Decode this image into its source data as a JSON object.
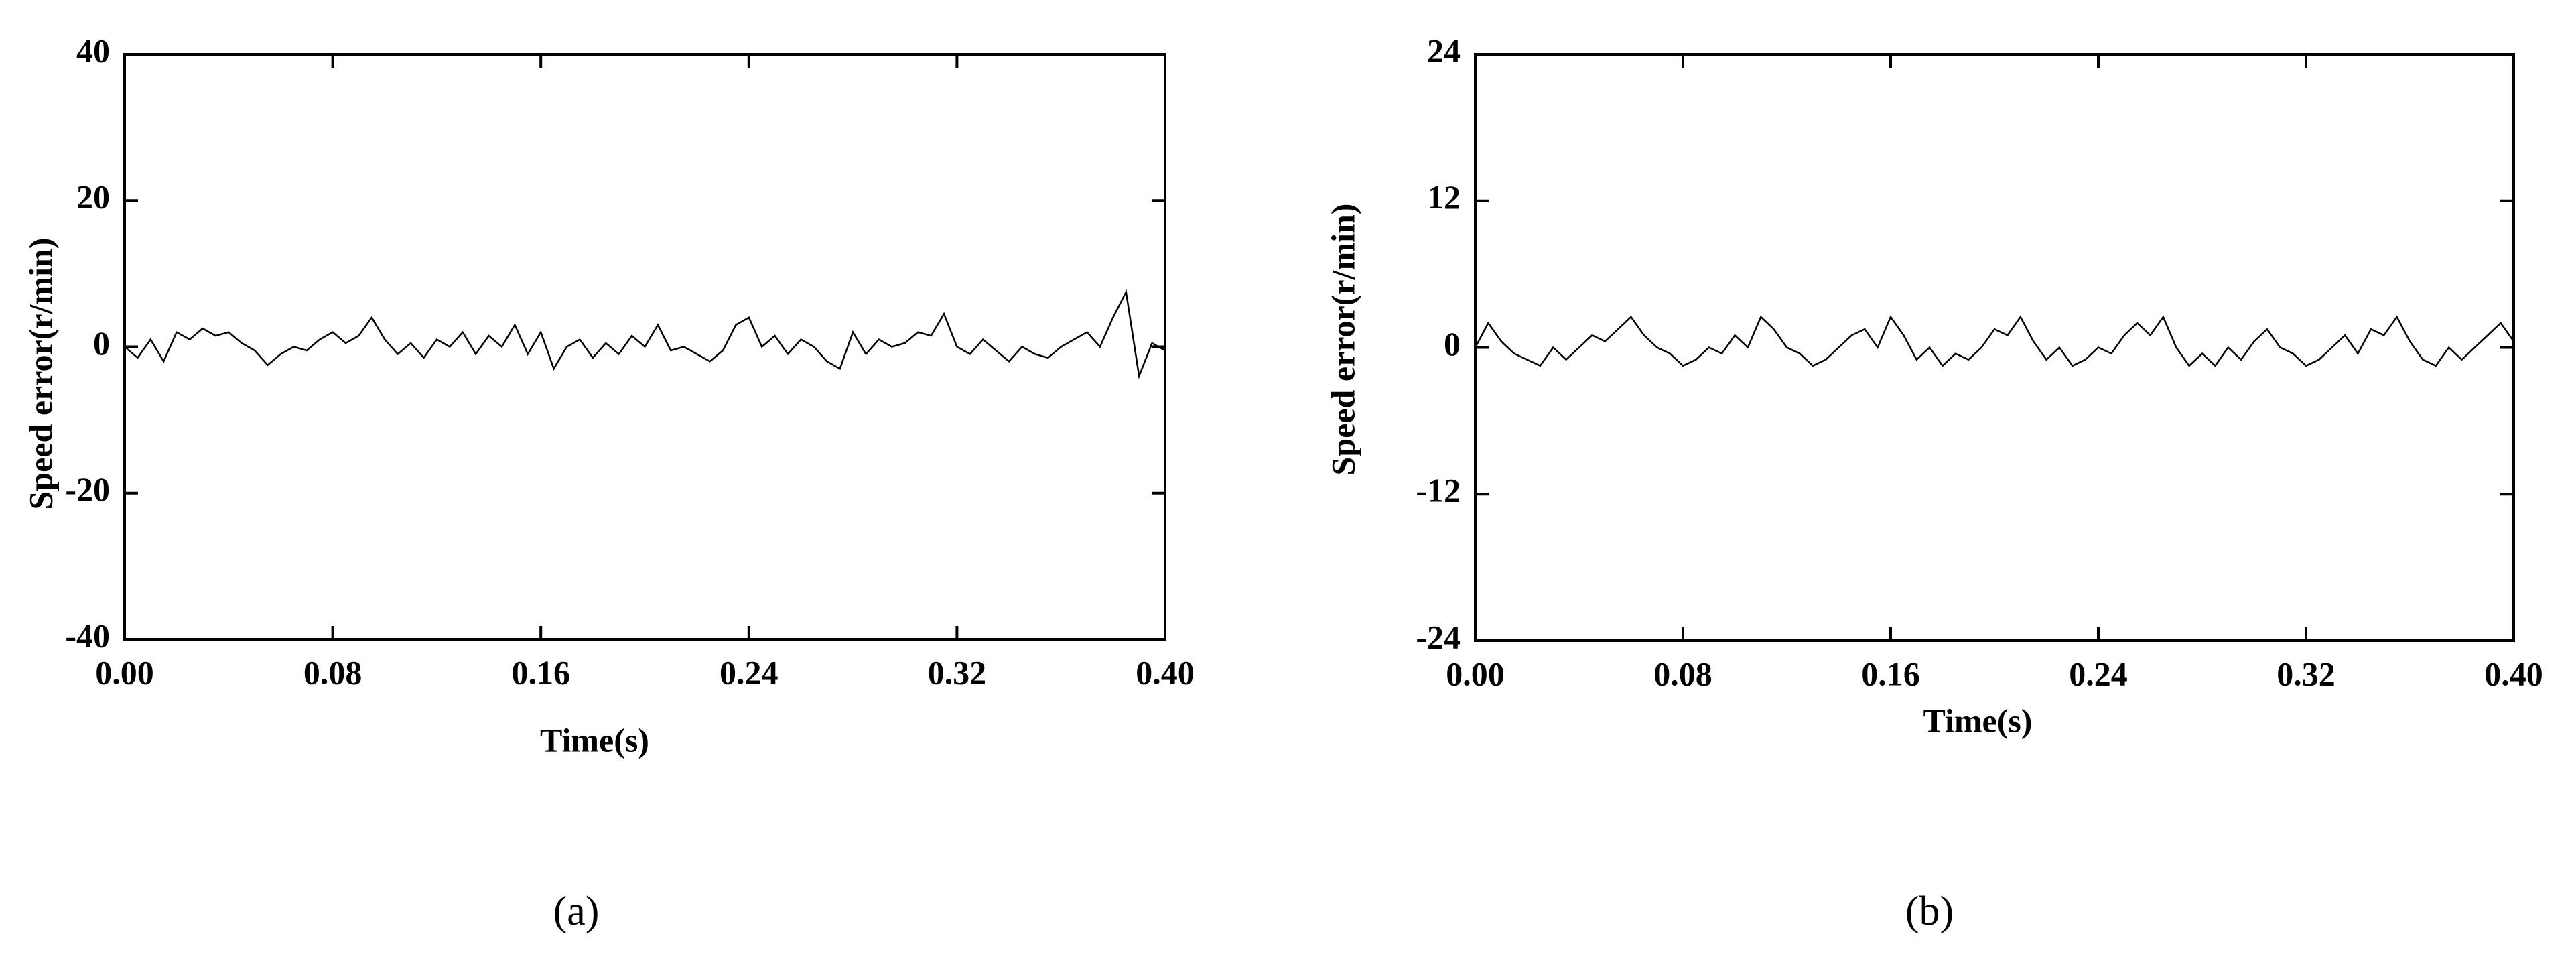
{
  "chart_data": [
    {
      "type": "line",
      "xlabel": "Time(s)",
      "ylabel": "Speed error(r/min)",
      "caption": "(a)",
      "xlim": [
        0,
        0.4
      ],
      "ylim": [
        -40,
        40
      ],
      "xticks": [
        {
          "value": 0,
          "label": "0.00"
        },
        0.08,
        0.16,
        0.24,
        0.32,
        {
          "value": 0.4,
          "label": "0.40"
        }
      ],
      "yticks": [
        -40,
        -20,
        0,
        20,
        40
      ],
      "x": [
        0,
        0.005,
        0.01,
        0.015,
        0.02,
        0.025,
        0.03,
        0.035,
        0.04,
        0.045,
        0.05,
        0.055,
        0.06,
        0.065,
        0.07,
        0.075,
        0.08,
        0.085,
        0.09,
        0.095,
        0.1,
        0.105,
        0.11,
        0.115,
        0.12,
        0.125,
        0.13,
        0.135,
        0.14,
        0.145,
        0.15,
        0.155,
        0.16,
        0.165,
        0.17,
        0.175,
        0.18,
        0.185,
        0.19,
        0.195,
        0.2,
        0.205,
        0.21,
        0.215,
        0.22,
        0.225,
        0.23,
        0.235,
        0.24,
        0.245,
        0.25,
        0.255,
        0.26,
        0.265,
        0.27,
        0.275,
        0.28,
        0.285,
        0.29,
        0.295,
        0.3,
        0.305,
        0.31,
        0.315,
        0.32,
        0.325,
        0.33,
        0.335,
        0.34,
        0.345,
        0.35,
        0.355,
        0.36,
        0.365,
        0.37,
        0.375,
        0.38,
        0.385,
        0.39,
        0.395,
        0.4
      ],
      "series": [
        {
          "color": "#000000",
          "values": [
            0,
            -1.5,
            1,
            -2,
            2,
            1,
            2.5,
            1.5,
            2,
            0.5,
            -0.5,
            -2.5,
            -1,
            0,
            -0.5,
            1,
            2,
            0.5,
            1.5,
            4,
            1,
            -1,
            0.5,
            -1.5,
            1,
            0,
            2,
            -1,
            1.5,
            0,
            3,
            -1,
            2,
            -3,
            0,
            1,
            -1.5,
            0.5,
            -1,
            1.5,
            0,
            3,
            -0.5,
            0,
            -1,
            -2,
            -0.5,
            3,
            4,
            0,
            1.5,
            -1,
            1,
            0,
            -2,
            -3,
            2,
            -1,
            1,
            0,
            0.5,
            2,
            1.5,
            4.5,
            0,
            -1,
            1,
            -0.5,
            -2,
            0,
            -1,
            -1.5,
            0,
            1,
            2,
            0,
            4,
            7.5,
            -4,
            0.5,
            -0.5
          ]
        }
      ]
    },
    {
      "type": "line",
      "xlabel": "Time(s)",
      "ylabel": "Speed error(r/min)",
      "caption": "(b)",
      "xlim": [
        0,
        0.4
      ],
      "ylim": [
        -24,
        24
      ],
      "xticks": [
        {
          "value": 0,
          "label": "0.00"
        },
        0.08,
        0.16,
        0.24,
        0.32,
        {
          "value": 0.4,
          "label": "0.40"
        }
      ],
      "yticks": [
        -24,
        -12,
        0,
        12,
        24
      ],
      "x": [
        0,
        0.005,
        0.01,
        0.015,
        0.02,
        0.025,
        0.03,
        0.035,
        0.04,
        0.045,
        0.05,
        0.055,
        0.06,
        0.065,
        0.07,
        0.075,
        0.08,
        0.085,
        0.09,
        0.095,
        0.1,
        0.105,
        0.11,
        0.115,
        0.12,
        0.125,
        0.13,
        0.135,
        0.14,
        0.145,
        0.15,
        0.155,
        0.16,
        0.165,
        0.17,
        0.175,
        0.18,
        0.185,
        0.19,
        0.195,
        0.2,
        0.205,
        0.21,
        0.215,
        0.22,
        0.225,
        0.23,
        0.235,
        0.24,
        0.245,
        0.25,
        0.255,
        0.26,
        0.265,
        0.27,
        0.275,
        0.28,
        0.285,
        0.29,
        0.295,
        0.3,
        0.305,
        0.31,
        0.315,
        0.32,
        0.325,
        0.33,
        0.335,
        0.34,
        0.345,
        0.35,
        0.355,
        0.36,
        0.365,
        0.37,
        0.375,
        0.38,
        0.385,
        0.39,
        0.395,
        0.4
      ],
      "series": [
        {
          "color": "#000000",
          "values": [
            0,
            2,
            0.5,
            -0.5,
            -1,
            -1.5,
            0,
            -1,
            0,
            1,
            0.5,
            1.5,
            2.5,
            1,
            0,
            -0.5,
            -1.5,
            -1,
            0,
            -0.5,
            1,
            0,
            2.5,
            1.5,
            0,
            -0.5,
            -1.5,
            -1,
            0,
            1,
            1.5,
            0,
            2.5,
            1,
            -1,
            0,
            -1.5,
            -0.5,
            -1,
            0,
            1.5,
            1,
            2.5,
            0.5,
            -1,
            0,
            -1.5,
            -1,
            0,
            -0.5,
            1,
            2,
            1,
            2.5,
            0,
            -1.5,
            -0.5,
            -1.5,
            0,
            -1,
            0.5,
            1.5,
            0,
            -0.5,
            -1.5,
            -1,
            0,
            1,
            -0.5,
            1.5,
            1,
            2.5,
            0.5,
            -1,
            -1.5,
            0,
            -1,
            0,
            1,
            2,
            0.5
          ]
        }
      ]
    }
  ]
}
